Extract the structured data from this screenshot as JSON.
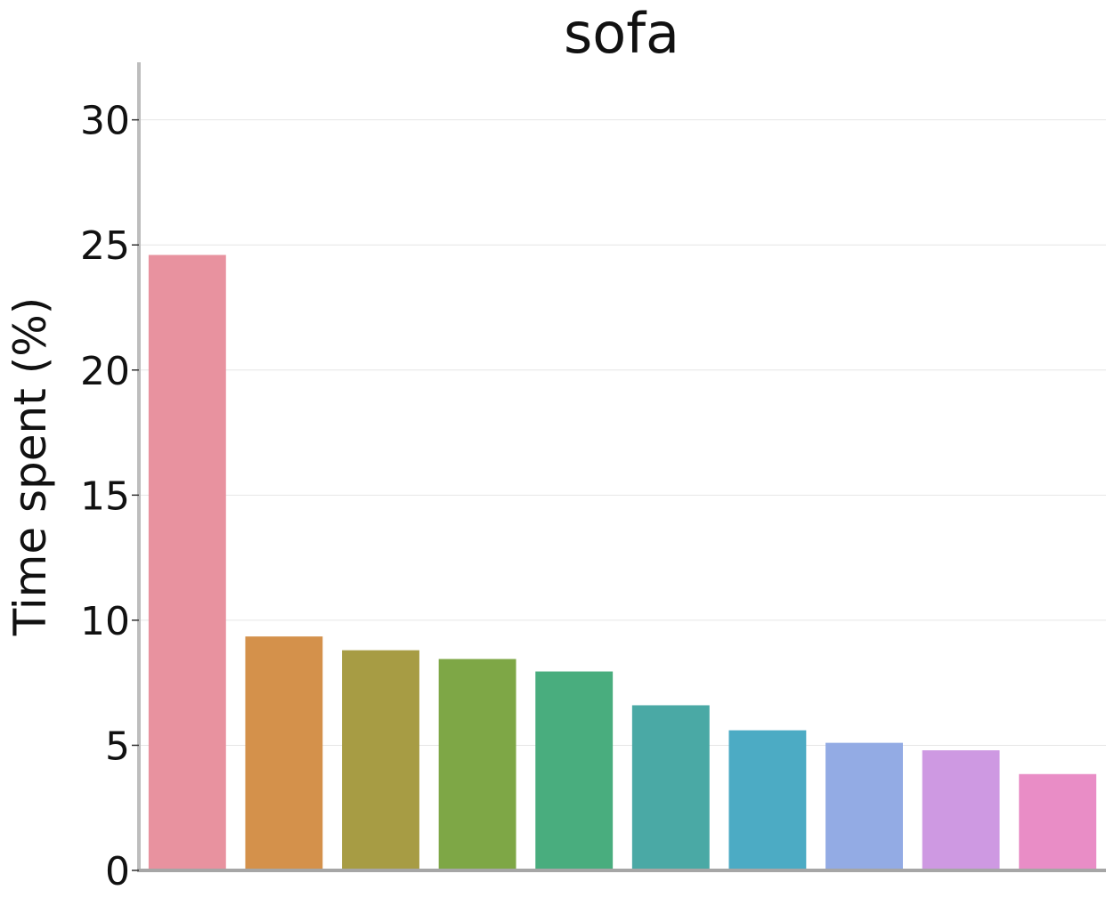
{
  "chart_data": {
    "type": "bar",
    "title": "sofa",
    "xlabel": "",
    "ylabel": "Time spent (%)",
    "ylim": [
      0,
      32.3
    ],
    "yticks": [
      0,
      5,
      10,
      15,
      20,
      25,
      30
    ],
    "grid": true,
    "categories": [
      "",
      "",
      "",
      "",
      "",
      "",
      "",
      "",
      "",
      ""
    ],
    "values": [
      24.6,
      9.35,
      8.8,
      8.45,
      7.95,
      6.6,
      5.6,
      5.1,
      4.8,
      3.85
    ],
    "colors": [
      "#e8929f",
      "#d4914b",
      "#a79c44",
      "#7ea746",
      "#49ad7e",
      "#4aa9a5",
      "#4cabc4",
      "#93abe4",
      "#ce99e2",
      "#e98dc6"
    ]
  }
}
